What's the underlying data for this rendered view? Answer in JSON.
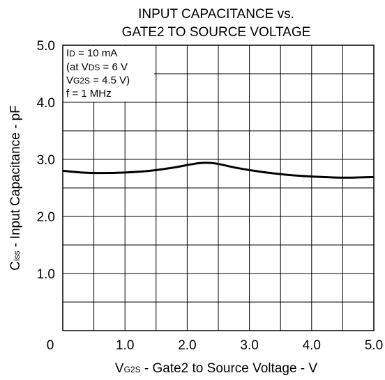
{
  "chart_data": {
    "type": "line",
    "title_line1": "INPUT CAPACITANCE vs.",
    "title_line2": "GATE2 TO SOURCE VOLTAGE",
    "xlabel": {
      "prefix": "V",
      "sub": "G2S",
      "text": " - Gate2 to Source Voltage - V"
    },
    "ylabel": {
      "prefix": "C",
      "sub": "iss",
      "text": " - Input Capacitance - pF"
    },
    "xlim": [
      0,
      5.0
    ],
    "ylim": [
      0,
      5.0
    ],
    "x_grid_step": 0.5,
    "y_grid_step": 0.5,
    "x_ticks": [
      {
        "value": 0,
        "label": "0"
      },
      {
        "value": 1.0,
        "label": "1.0"
      },
      {
        "value": 2.0,
        "label": "2.0"
      },
      {
        "value": 3.0,
        "label": "3.0"
      },
      {
        "value": 4.0,
        "label": "4.0"
      },
      {
        "value": 5.0,
        "label": "5.0"
      }
    ],
    "y_ticks": [
      {
        "value": 1.0,
        "label": "1.0"
      },
      {
        "value": 2.0,
        "label": "2.0"
      },
      {
        "value": 3.0,
        "label": "3.0"
      },
      {
        "value": 4.0,
        "label": "4.0"
      },
      {
        "value": 5.0,
        "label": "5.0"
      }
    ],
    "conditions": {
      "line1": {
        "prefix": "I",
        "sub": "D",
        "text": " = 10 mA"
      },
      "line2": {
        "prefix": "(at V",
        "sub": "DS",
        "text": " = 6 V"
      },
      "line3": {
        "prefix": "V",
        "sub": "G2S",
        "text": " = 4.5 V)"
      },
      "line4": {
        "text": "f = 1 MHz"
      }
    },
    "grid": true,
    "series": [
      {
        "color": "#000000",
        "x": [
          0,
          0.3,
          0.6,
          1.0,
          1.4,
          1.8,
          2.1,
          2.3,
          2.5,
          2.8,
          3.2,
          3.6,
          4.0,
          4.5,
          5.0
        ],
        "y": [
          2.8,
          2.77,
          2.76,
          2.77,
          2.8,
          2.86,
          2.92,
          2.94,
          2.92,
          2.85,
          2.78,
          2.73,
          2.7,
          2.68,
          2.69
        ]
      }
    ]
  }
}
